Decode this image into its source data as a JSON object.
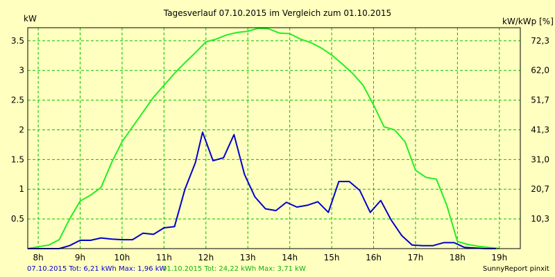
{
  "chart_data": {
    "type": "line",
    "title": "Tagesverlauf 07.10.2015 im Vergleich zum 01.10.2015",
    "ylabel_left": "kW",
    "ylabel_right": "kW/kWp [%]",
    "ylim": [
      0,
      3.72
    ],
    "y_ticks": [
      0.5,
      1,
      1.5,
      2,
      2.5,
      3,
      3.5
    ],
    "y_tick_labels": [
      "0.5",
      "1",
      "1.5",
      "2",
      "2.5",
      "3",
      "3.5"
    ],
    "y2_ticks": [
      0.5,
      1,
      1.5,
      2,
      2.5,
      3,
      3.5
    ],
    "y2_tick_labels": [
      "10,3",
      "20,7",
      "31,0",
      "41,3",
      "51,7",
      "62,0",
      "72,3"
    ],
    "xlim": [
      7.75,
      19.5
    ],
    "x_ticks": [
      8,
      9,
      10,
      11,
      12,
      13,
      14,
      15,
      16,
      17,
      18,
      19
    ],
    "x_tick_labels": [
      "8h",
      "9h",
      "10h",
      "11h",
      "12h",
      "13h",
      "14h",
      "15h",
      "16h",
      "17h",
      "18h",
      "19h"
    ],
    "grid": true,
    "colors": {
      "background": "#ffffc0",
      "grid": "#00c000",
      "green_series": "#22ee22",
      "blue_series": "#0000cc",
      "frame": "#000000"
    },
    "series": [
      {
        "color": "#22ee22",
        "x": [
          7.75,
          8.0,
          8.25,
          8.5,
          8.75,
          9.0,
          9.25,
          9.5,
          9.75,
          10.0,
          10.25,
          10.5,
          10.75,
          11.0,
          11.25,
          11.5,
          11.75,
          12.0,
          12.25,
          12.5,
          12.75,
          13.0,
          13.25,
          13.5,
          13.75,
          14.0,
          14.25,
          14.5,
          14.75,
          15.0,
          15.25,
          15.5,
          15.75,
          16.0,
          16.25,
          16.5,
          16.75,
          17.0,
          17.25,
          17.5,
          17.75,
          18.0,
          18.25,
          18.5,
          18.75,
          19.0
        ],
        "values": [
          0.0,
          0.03,
          0.06,
          0.15,
          0.5,
          0.8,
          0.9,
          1.03,
          1.45,
          1.8,
          2.05,
          2.3,
          2.55,
          2.75,
          2.95,
          3.13,
          3.3,
          3.48,
          3.53,
          3.6,
          3.64,
          3.66,
          3.71,
          3.7,
          3.63,
          3.62,
          3.53,
          3.47,
          3.38,
          3.26,
          3.11,
          2.95,
          2.75,
          2.42,
          2.05,
          2.0,
          1.8,
          1.32,
          1.2,
          1.17,
          0.72,
          0.12,
          0.07,
          0.04,
          0.02,
          0.0
        ]
      },
      {
        "color": "#0000cc",
        "x": [
          7.75,
          8.0,
          8.25,
          8.5,
          8.75,
          9.0,
          9.25,
          9.5,
          9.75,
          10.0,
          10.25,
          10.5,
          10.75,
          11.0,
          11.25,
          11.5,
          11.75,
          11.92,
          12.17,
          12.42,
          12.67,
          12.92,
          13.17,
          13.42,
          13.67,
          13.92,
          14.17,
          14.42,
          14.67,
          14.92,
          15.17,
          15.42,
          15.67,
          15.92,
          16.17,
          16.42,
          16.67,
          16.92,
          17.17,
          17.42,
          17.67,
          17.92,
          18.17,
          18.42,
          18.67,
          18.92
        ],
        "values": [
          0.0,
          0.0,
          0.0,
          0.0,
          0.05,
          0.14,
          0.14,
          0.18,
          0.16,
          0.15,
          0.15,
          0.26,
          0.24,
          0.35,
          0.37,
          1.0,
          1.45,
          1.96,
          1.48,
          1.53,
          1.92,
          1.25,
          0.87,
          0.67,
          0.64,
          0.78,
          0.7,
          0.73,
          0.79,
          0.61,
          1.13,
          1.13,
          0.98,
          0.61,
          0.81,
          0.48,
          0.22,
          0.06,
          0.05,
          0.05,
          0.1,
          0.1,
          0.02,
          0.01,
          0.0,
          0.0
        ]
      }
    ]
  },
  "footer": {
    "blue_text": "07.10.2015 Tot: 6,21 kWh Max: 1,96 kW",
    "green_text": "01.10.2015 Tot: 24,22 kWh Max: 3,71 kW",
    "credit": "SunnyReport pinxit"
  }
}
